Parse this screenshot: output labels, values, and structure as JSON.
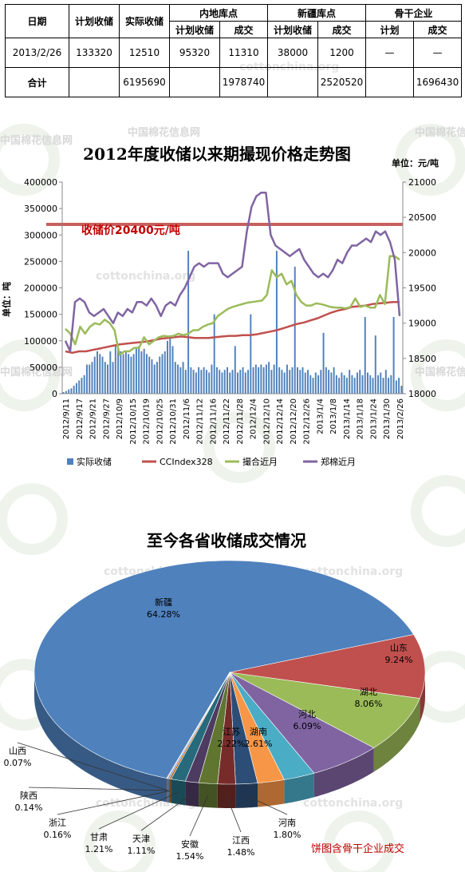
{
  "table": {
    "h_date": "日期",
    "h_plan": "计划收储",
    "h_actual": "实际收储",
    "h_inland": "内地库点",
    "h_xinjiang": "新疆库点",
    "h_backbone": "骨干企业",
    "sub_plan": "计划收储",
    "sub_deal": "成交",
    "sub_plan2": "计划",
    "row1": {
      "date": "2013/2/26",
      "plan": "133320",
      "actual": "12510",
      "inland_plan": "95320",
      "inland_deal": "11310",
      "xj_plan": "38000",
      "xj_deal": "1200",
      "bb_plan": "—",
      "bb_deal": "—"
    },
    "total": {
      "label": "合计",
      "actual": "6195690",
      "inland_deal": "1978740",
      "xj_deal": "2520520",
      "bb_deal": "1696430"
    }
  },
  "watermarks": {
    "site": "cottonchina.org",
    "cn": "中国棉花信息网"
  },
  "line_chart": {
    "title": "2012年度收储以来期撮现价格走势图",
    "unit": "单位：元/吨",
    "ylabel": "单位：吨",
    "reserve_label": "收储价20400元/吨"
  },
  "pie_chart": {
    "title": "至今各省收储成交情况",
    "note": "饼图含骨干企业成交"
  },
  "colors": {
    "bar": "#4f81bd",
    "cc": "#c0504d",
    "match": "#9bbb59",
    "zce": "#8064a2",
    "reserve": "#c0504d"
  },
  "chart_data": [
    {
      "type": "bar",
      "title": "2012年度收储以来期撮现价格走势图",
      "ylabel": "单位：吨",
      "y2label": "单位：元/吨",
      "ylim": [
        0,
        400000
      ],
      "y2lim": [
        18000,
        21000
      ],
      "yticks": [
        "0",
        "50000",
        "100000",
        "150000",
        "200000",
        "250000",
        "300000",
        "350000",
        "400000"
      ],
      "y2ticks": [
        "18000",
        "18500",
        "19000",
        "19500",
        "20000",
        "20500",
        "21000"
      ],
      "xticks": [
        "2012/9/11",
        "2012/9/17",
        "2012/9/21",
        "2012/9/27",
        "2012/10/9",
        "2012/10/15",
        "2012/10/19",
        "2012/10/25",
        "2012/10/31",
        "2012/11/6",
        "2012/11/12",
        "2012/11/16",
        "2012/11/22",
        "2012/11/28",
        "2012/12/4",
        "2012/12/10",
        "2012/12/14",
        "2012/12/20",
        "2012/12/26",
        "2013/1/4",
        "2013/1/8",
        "2013/1/14",
        "2013/1/18",
        "2013/1/24",
        "2013/1/30",
        "2013/2/26"
      ],
      "reference_line": {
        "value": 20400,
        "label": "收储价20400元/吨"
      },
      "series": [
        {
          "name": "实际收储",
          "kind": "bar",
          "axis": "left",
          "values": [
            3000,
            5000,
            8000,
            10000,
            15000,
            20000,
            25000,
            30000,
            35000,
            55000,
            55000,
            60000,
            70000,
            80000,
            75000,
            70000,
            60000,
            55000,
            80000,
            60000,
            90000,
            85000,
            80000,
            75000,
            80000,
            75000,
            70000,
            75000,
            85000,
            90000,
            80000,
            85000,
            75000,
            70000,
            65000,
            55000,
            60000,
            70000,
            75000,
            80000,
            100000,
            110000,
            90000,
            60000,
            55000,
            50000,
            60000,
            45000,
            270000,
            50000,
            45000,
            40000,
            50000,
            45000,
            50000,
            45000,
            40000,
            55000,
            150000,
            50000,
            45000,
            40000,
            45000,
            50000,
            40000,
            45000,
            90000,
            40000,
            45000,
            50000,
            40000,
            45000,
            150000,
            50000,
            55000,
            50000,
            55000,
            50000,
            55000,
            60000,
            45000,
            55000,
            270000,
            50000,
            45000,
            40000,
            55000,
            45000,
            50000,
            240000,
            50000,
            45000,
            50000,
            40000,
            45000,
            35000,
            30000,
            40000,
            35000,
            45000,
            115000,
            50000,
            45000,
            40000,
            50000,
            35000,
            30000,
            40000,
            35000,
            30000,
            45000,
            35000,
            30000,
            40000,
            45000,
            35000,
            145000,
            40000,
            35000,
            30000,
            110000,
            35000,
            40000,
            30000,
            45000,
            30000,
            35000,
            145000,
            25000,
            30000,
            15000
          ]
        },
        {
          "name": "CCIndex328",
          "kind": "line",
          "axis": "right",
          "values": [
            18600,
            18580,
            18600,
            18600,
            18620,
            18640,
            18660,
            18680,
            18700,
            18710,
            18720,
            18730,
            18740,
            18760,
            18780,
            18790,
            18800,
            18810,
            18800,
            18790,
            18790,
            18790,
            18800,
            18810,
            18820,
            18820,
            18830,
            18830,
            18840,
            18860,
            18880,
            18900,
            18930,
            18960,
            18990,
            19010,
            19040,
            19070,
            19110,
            19150,
            19180,
            19200,
            19230,
            19240,
            19250,
            19270,
            19280,
            19290,
            19300,
            19300
          ]
        },
        {
          "name": "撮合近月",
          "kind": "line",
          "axis": "right",
          "values": [
            18920,
            18850,
            18700,
            18950,
            18850,
            18950,
            19000,
            18980,
            19050,
            19000,
            18900,
            18550,
            18600,
            18600,
            18650,
            18650,
            18800,
            18700,
            18750,
            18800,
            18820,
            18810,
            18820,
            18850,
            18830,
            18850,
            18900,
            18900,
            18950,
            18980,
            19000,
            19100,
            19150,
            19200,
            19230,
            19250,
            19270,
            19290,
            19300,
            19310,
            19320,
            19400,
            19750,
            19650,
            19700,
            19550,
            19600,
            19400,
            19300,
            19250,
            19250,
            19280,
            19270,
            19250,
            19230,
            19220,
            19220,
            19210,
            19230,
            19350,
            19230,
            19250,
            19220,
            19220,
            19400,
            19270,
            19950,
            19950,
            19900
          ]
        },
        {
          "name": "郑棉近月",
          "kind": "line",
          "axis": "right",
          "values": [
            18750,
            18600,
            19300,
            19350,
            19300,
            19150,
            19100,
            19150,
            19200,
            19100,
            19000,
            19150,
            19100,
            19200,
            19150,
            19300,
            19300,
            19250,
            19350,
            19250,
            19100,
            19250,
            19300,
            19250,
            19400,
            19500,
            19650,
            19800,
            19850,
            19800,
            19850,
            19850,
            19850,
            19700,
            19650,
            19700,
            19750,
            19800,
            20300,
            20650,
            20800,
            20850,
            20850,
            20250,
            20100,
            20050,
            20000,
            19950,
            20000,
            20050,
            19900,
            19800,
            19700,
            19650,
            19700,
            19650,
            19750,
            19900,
            19850,
            20000,
            20100,
            20100,
            20150,
            20200,
            20150,
            20300,
            20250,
            20300,
            20150,
            19900,
            19100
          ]
        }
      ]
    },
    {
      "type": "pie",
      "title": "至今各省收储成交情况",
      "slices": [
        {
          "label": "新疆",
          "value": 64.28,
          "pct": "64.28%",
          "color": "#4f81bd"
        },
        {
          "label": "山东",
          "value": 9.24,
          "pct": "9.24%",
          "color": "#c0504d"
        },
        {
          "label": "湖北",
          "value": 8.06,
          "pct": "8.06%",
          "color": "#9bbb59"
        },
        {
          "label": "河北",
          "value": 6.09,
          "pct": "6.09%",
          "color": "#8064a2"
        },
        {
          "label": "湖南",
          "value": 2.61,
          "pct": "2.61%",
          "color": "#4bacc6"
        },
        {
          "label": "江苏",
          "value": 2.22,
          "pct": "2.22%",
          "color": "#f79646"
        },
        {
          "label": "河南",
          "value": 1.8,
          "pct": "1.80%",
          "color": "#2c4d75"
        },
        {
          "label": "江西",
          "value": 1.48,
          "pct": "1.48%",
          "color": "#772c2a"
        },
        {
          "label": "安徽",
          "value": 1.54,
          "pct": "1.54%",
          "color": "#5f7530"
        },
        {
          "label": "天津",
          "value": 1.11,
          "pct": "1.11%",
          "color": "#4d3b62"
        },
        {
          "label": "甘肃",
          "value": 1.21,
          "pct": "1.21%",
          "color": "#276a7c"
        },
        {
          "label": "浙江",
          "value": 0.16,
          "pct": "0.16%",
          "color": "#b65708"
        },
        {
          "label": "陕西",
          "value": 0.14,
          "pct": "0.14%",
          "color": "#729aca"
        },
        {
          "label": "山西",
          "value": 0.07,
          "pct": "0.07%",
          "color": "#ce8a88"
        }
      ]
    }
  ]
}
